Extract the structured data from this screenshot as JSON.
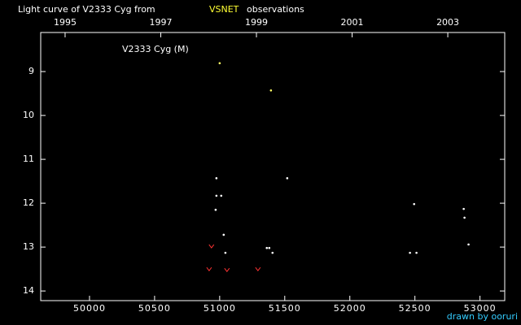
{
  "chart_data": {
    "type": "scatter",
    "title": "Light curve of V2333 Cyg from",
    "title_highlight": "VSNET",
    "title_end": "observations",
    "annotation": "V2333 Cyg (M)",
    "credit": "drawn by ooruri",
    "xlim": [
      49625,
      53190
    ],
    "xticks": [
      50000,
      50500,
      51000,
      51500,
      52000,
      52500,
      53000
    ],
    "x2lim": [
      1994.49,
      2004.19
    ],
    "x2ticks": [
      1995,
      1997,
      1999,
      2001,
      2003
    ],
    "ylim": [
      14.22,
      8.11
    ],
    "yticks": [
      9,
      10,
      11,
      12,
      13,
      14
    ],
    "series": [
      {
        "color": "#ffff66",
        "marker": "dot",
        "x": [
          51000,
          51394
        ],
        "values": [
          8.81,
          9.43
        ]
      },
      {
        "color": "#ffffff",
        "marker": "dot",
        "x": [
          50975,
          50975,
          51012,
          50969,
          51031,
          51044,
          51362,
          51381,
          51406,
          51519,
          52494,
          52462,
          52512,
          52875,
          52881,
          52912
        ],
        "values": [
          11.43,
          11.83,
          11.83,
          12.15,
          12.72,
          13.13,
          13.02,
          13.02,
          13.13,
          11.43,
          12.02,
          13.13,
          13.13,
          12.13,
          12.33,
          12.94
        ]
      },
      {
        "color": "#ff3333",
        "marker": "v",
        "x": [
          50937,
          50919,
          51056,
          51294
        ],
        "values": [
          12.98,
          13.5,
          13.52,
          13.5
        ]
      }
    ]
  }
}
